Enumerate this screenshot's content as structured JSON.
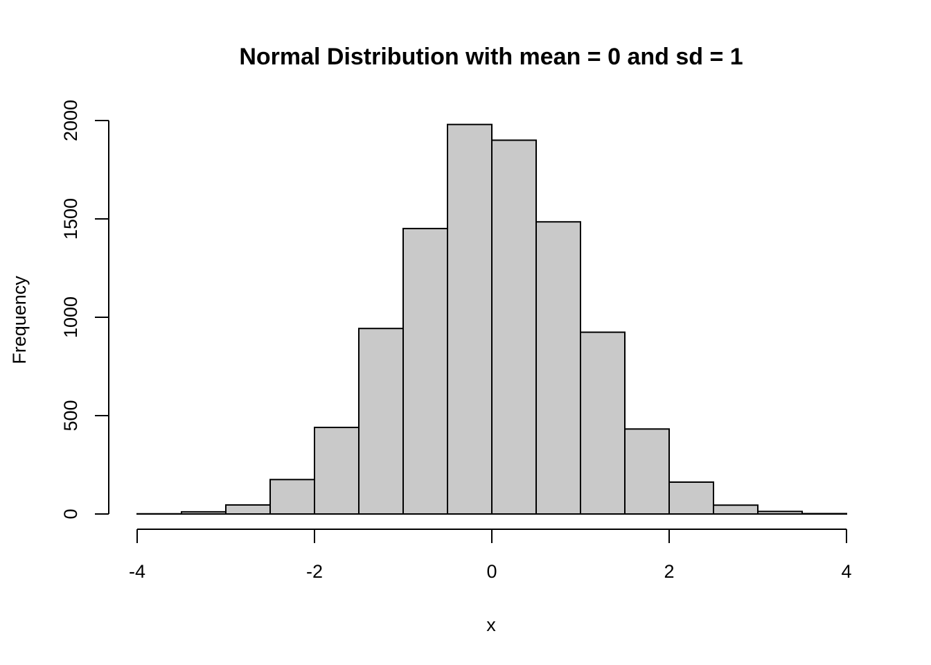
{
  "chart_data": {
    "type": "bar",
    "title": "Normal Distribution with mean = 0 and sd = 1",
    "xlabel": "x",
    "ylabel": "Frequency",
    "xlim": [
      -4,
      4
    ],
    "ylim": [
      0,
      2000
    ],
    "x_ticks": [
      "-4",
      "-2",
      "0",
      "2",
      "4"
    ],
    "y_ticks": [
      "0",
      "500",
      "1000",
      "1500",
      "2000"
    ],
    "bin_width": 0.5,
    "bins": [
      {
        "start": -4.0,
        "end": -3.5,
        "count": 1
      },
      {
        "start": -3.5,
        "end": -3.0,
        "count": 11
      },
      {
        "start": -3.0,
        "end": -2.5,
        "count": 46
      },
      {
        "start": -2.5,
        "end": -2.0,
        "count": 175
      },
      {
        "start": -2.0,
        "end": -1.5,
        "count": 440
      },
      {
        "start": -1.5,
        "end": -1.0,
        "count": 943
      },
      {
        "start": -1.0,
        "end": -0.5,
        "count": 1451
      },
      {
        "start": -0.5,
        "end": 0.0,
        "count": 1980
      },
      {
        "start": 0.0,
        "end": 0.5,
        "count": 1900
      },
      {
        "start": 0.5,
        "end": 1.0,
        "count": 1485
      },
      {
        "start": 1.0,
        "end": 1.5,
        "count": 924
      },
      {
        "start": 1.5,
        "end": 2.0,
        "count": 432
      },
      {
        "start": 2.0,
        "end": 2.5,
        "count": 162
      },
      {
        "start": 2.5,
        "end": 3.0,
        "count": 45
      },
      {
        "start": 3.0,
        "end": 3.5,
        "count": 13
      },
      {
        "start": 3.5,
        "end": 4.0,
        "count": 2
      }
    ],
    "bar_fill": "#c9c9c9",
    "bar_stroke": "#000000",
    "grid": false,
    "legend": "none"
  }
}
